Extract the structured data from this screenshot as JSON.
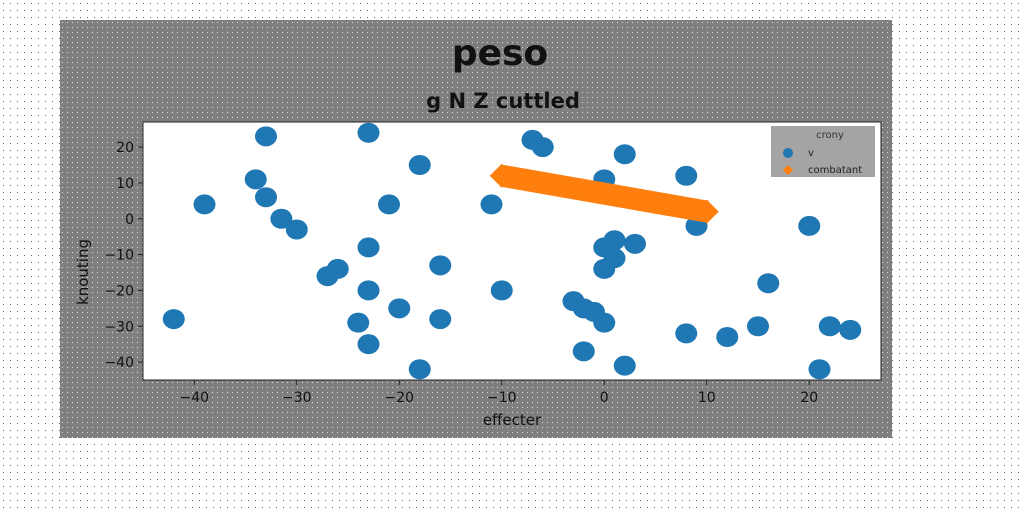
{
  "chart_data": {
    "type": "scatter",
    "title": "peso",
    "subtitle": "g N Z cuttled",
    "xlabel": "effecter",
    "ylabel": "knouting",
    "xlim": [
      -45,
      27
    ],
    "ylim": [
      -45,
      27
    ],
    "x_ticks": [
      -40,
      -30,
      -20,
      -10,
      0,
      10,
      20
    ],
    "y_ticks": [
      20,
      10,
      0,
      -10,
      -20,
      -30,
      -40
    ],
    "grid": false,
    "legend": {
      "placement": "top-right",
      "title": "crony",
      "entries": [
        "v",
        "combatant"
      ]
    },
    "series": [
      {
        "name": "v",
        "color": "#1f77b4",
        "marker": "circle",
        "points": [
          [
            -42,
            -28
          ],
          [
            -39,
            4
          ],
          [
            -34,
            11
          ],
          [
            -33,
            23
          ],
          [
            -33,
            6
          ],
          [
            -31.5,
            0
          ],
          [
            -30,
            -3
          ],
          [
            -27,
            -16
          ],
          [
            -26,
            -14
          ],
          [
            -24,
            -29
          ],
          [
            -23,
            24
          ],
          [
            -23,
            -8
          ],
          [
            -23,
            -20
          ],
          [
            -23,
            -35
          ],
          [
            -21,
            4
          ],
          [
            -20,
            -25
          ],
          [
            -18,
            15
          ],
          [
            -18,
            -42
          ],
          [
            -16,
            -13
          ],
          [
            -16,
            -28
          ],
          [
            -11,
            4
          ],
          [
            -10,
            -20
          ],
          [
            -7,
            22
          ],
          [
            -6,
            20
          ],
          [
            -3,
            -23
          ],
          [
            -2,
            -25
          ],
          [
            -2,
            -37
          ],
          [
            -1,
            -26
          ],
          [
            0,
            11
          ],
          [
            0,
            -8
          ],
          [
            0,
            -14
          ],
          [
            0,
            -29
          ],
          [
            1,
            -6
          ],
          [
            1,
            -11
          ],
          [
            2,
            18
          ],
          [
            2,
            -41
          ],
          [
            3,
            -7
          ],
          [
            8,
            12
          ],
          [
            8,
            -32
          ],
          [
            9,
            -2
          ],
          [
            12,
            -33
          ],
          [
            15,
            -30
          ],
          [
            16,
            -18
          ],
          [
            20,
            -2
          ],
          [
            21,
            -42
          ],
          [
            22,
            -30
          ],
          [
            24,
            -31
          ]
        ]
      },
      {
        "name": "combatant",
        "color": "#ff7f0e",
        "marker": "thick-line",
        "points": [
          [
            -10,
            12
          ],
          [
            10,
            2
          ]
        ]
      }
    ]
  }
}
